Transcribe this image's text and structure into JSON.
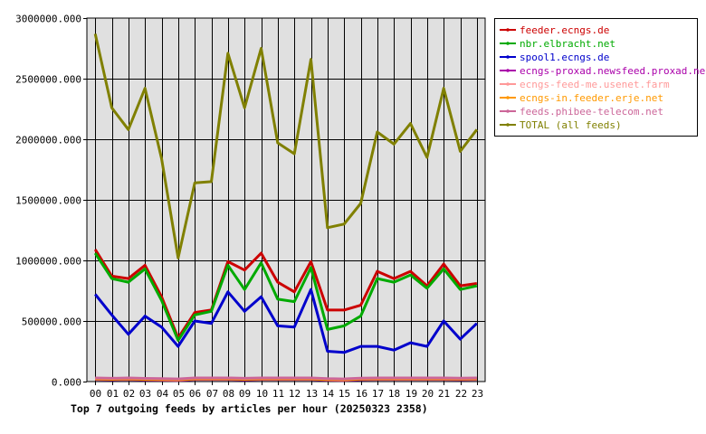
{
  "chart_data": {
    "type": "line",
    "title": "Top 7 outgoing feeds by articles per hour (20250323 2358)",
    "xlabel": "",
    "ylabel": "",
    "x": [
      "00",
      "01",
      "02",
      "03",
      "04",
      "05",
      "06",
      "07",
      "08",
      "09",
      "10",
      "11",
      "12",
      "13",
      "14",
      "15",
      "16",
      "17",
      "18",
      "19",
      "20",
      "21",
      "22",
      "23"
    ],
    "ylim": [
      0,
      3000000
    ],
    "yticks": [
      "0.000",
      "500000.000",
      "1000000.000",
      "1500000.000",
      "2000000.000",
      "2500000.000",
      "3000000.000"
    ],
    "grid": true,
    "legend_position": "right-top",
    "background_color": "#e0e0e0",
    "series": [
      {
        "name": "feeder.ecngs.de",
        "color": "#cc0000",
        "values": [
          1090000,
          870000,
          850000,
          960000,
          700000,
          360000,
          570000,
          590000,
          990000,
          920000,
          1060000,
          820000,
          740000,
          990000,
          590000,
          590000,
          630000,
          910000,
          850000,
          910000,
          790000,
          970000,
          790000,
          810000
        ]
      },
      {
        "name": "nbr.elbracht.net",
        "color": "#00aa00",
        "values": [
          1060000,
          850000,
          820000,
          930000,
          670000,
          340000,
          550000,
          580000,
          960000,
          760000,
          980000,
          680000,
          660000,
          940000,
          430000,
          460000,
          540000,
          850000,
          820000,
          880000,
          770000,
          930000,
          760000,
          790000
        ]
      },
      {
        "name": "spool1.ecngs.de",
        "color": "#0000cc",
        "values": [
          720000,
          550000,
          390000,
          540000,
          450000,
          290000,
          500000,
          480000,
          740000,
          580000,
          700000,
          460000,
          450000,
          760000,
          250000,
          240000,
          290000,
          290000,
          260000,
          320000,
          290000,
          500000,
          350000,
          480000
        ]
      },
      {
        "name": "ecngs-proxad.newsfeed.proxad.net",
        "color": "#aa00aa",
        "values": [
          18000,
          15000,
          18000,
          14000,
          12000,
          10000,
          18000,
          18000,
          18000,
          14000,
          18000,
          18000,
          18000,
          18000,
          12000,
          10000,
          16000,
          18000,
          18000,
          18000,
          18000,
          18000,
          16000,
          18000
        ]
      },
      {
        "name": "ecngs-feed-me.usenet.farm",
        "color": "#ff9999",
        "values": [
          25000,
          22000,
          25000,
          21000,
          19000,
          17000,
          25000,
          25000,
          25000,
          22000,
          25000,
          25000,
          25000,
          25000,
          19000,
          17000,
          23000,
          25000,
          25000,
          25000,
          25000,
          25000,
          23000,
          25000
        ]
      },
      {
        "name": "ecngs-in.feeder.erje.net",
        "color": "#ff9900",
        "values": [
          22000,
          19000,
          22000,
          18000,
          16000,
          14000,
          22000,
          22000,
          22000,
          19000,
          22000,
          22000,
          22000,
          22000,
          16000,
          14000,
          20000,
          22000,
          22000,
          22000,
          22000,
          22000,
          20000,
          22000
        ]
      },
      {
        "name": "feeds.phibee-telecom.net",
        "color": "#cc6699",
        "values": [
          30000,
          27000,
          30000,
          26000,
          24000,
          22000,
          30000,
          30000,
          30000,
          27000,
          30000,
          30000,
          30000,
          30000,
          24000,
          22000,
          28000,
          30000,
          30000,
          30000,
          30000,
          30000,
          28000,
          30000
        ]
      },
      {
        "name": "TOTAL (all feeds)",
        "color": "#808000",
        "values": [
          2870000,
          2260000,
          2080000,
          2420000,
          1840000,
          1020000,
          1640000,
          1650000,
          2710000,
          2260000,
          2750000,
          1970000,
          1880000,
          2660000,
          1270000,
          1300000,
          1470000,
          2060000,
          1960000,
          2130000,
          1850000,
          2420000,
          1900000,
          2080000
        ]
      }
    ]
  }
}
